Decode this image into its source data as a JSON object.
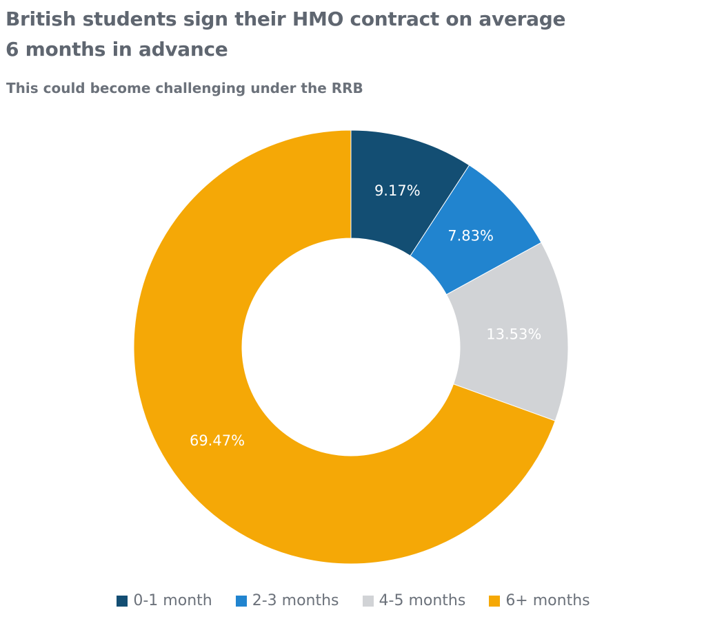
{
  "header": {
    "title_line1": "British students sign their HMO contract on average",
    "title_line2": "6 months in advance",
    "subtitle": "This could become challenging under the RRB"
  },
  "chart_data": {
    "type": "pie",
    "donut": true,
    "title": "British students sign their HMO contract on average 6 months in advance",
    "subtitle": "This could become challenging under the RRB",
    "categories": [
      "0-1 month",
      "2-3 months",
      "4-5 months",
      "6+ months"
    ],
    "values": [
      9.17,
      7.83,
      13.53,
      69.47
    ],
    "data_labels": [
      "9.17%",
      "7.83%",
      "13.53%",
      "69.47%"
    ],
    "colors": [
      "#134e73",
      "#2184cf",
      "#d1d3d6",
      "#f5a806"
    ],
    "legend_placement": "bottom",
    "start": "top, clockwise"
  }
}
